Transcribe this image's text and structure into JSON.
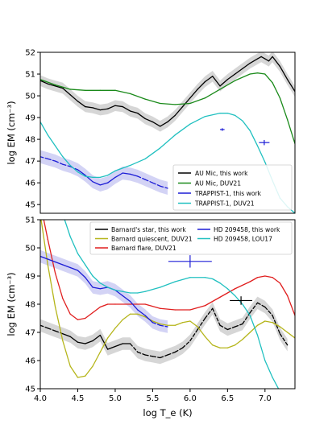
{
  "chart_data": [
    {
      "type": "line",
      "ylabel": "log EM (cm⁻³)",
      "xlim": [
        4.0,
        7.4
      ],
      "ylim": [
        44.6,
        52.0
      ],
      "yticks": [
        "45",
        "46",
        "47",
        "48",
        "49",
        "50",
        "51",
        "52"
      ],
      "legend_position": "lower-right",
      "series": [
        {
          "name": "AU Mic, this work",
          "color": "#000000",
          "style": "solid",
          "band_color": "#bbbbbb",
          "x": [
            4.0,
            4.1,
            4.2,
            4.3,
            4.4,
            4.5,
            4.6,
            4.7,
            4.8,
            4.9,
            5.0,
            5.1,
            5.2,
            5.3,
            5.4,
            5.5,
            5.6,
            5.7,
            5.8,
            5.9,
            6.0,
            6.1,
            6.2,
            6.3,
            6.4,
            6.5,
            6.6,
            6.7,
            6.8,
            6.9,
            6.95,
            7.0,
            7.05,
            7.1,
            7.2,
            7.3,
            7.4
          ],
          "y": [
            50.7,
            50.55,
            50.45,
            50.35,
            50.05,
            49.75,
            49.5,
            49.45,
            49.35,
            49.4,
            49.55,
            49.5,
            49.3,
            49.2,
            48.95,
            48.8,
            48.6,
            48.8,
            49.1,
            49.5,
            49.9,
            50.3,
            50.65,
            50.9,
            50.45,
            50.75,
            51.0,
            51.25,
            51.5,
            51.7,
            51.8,
            51.7,
            51.6,
            51.8,
            51.35,
            50.75,
            50.2
          ],
          "band_halfwidth": 0.25
        },
        {
          "name": "AU Mic, DUV21",
          "color": "#1a8a1a",
          "style": "solid",
          "x": [
            4.0,
            4.2,
            4.4,
            4.6,
            4.8,
            5.0,
            5.2,
            5.4,
            5.6,
            5.8,
            6.0,
            6.2,
            6.4,
            6.6,
            6.8,
            6.9,
            7.0,
            7.1,
            7.2,
            7.3,
            7.4
          ],
          "y": [
            50.75,
            50.5,
            50.3,
            50.25,
            50.25,
            50.25,
            50.1,
            49.85,
            49.65,
            49.6,
            49.65,
            49.9,
            50.3,
            50.7,
            51.0,
            51.05,
            51.0,
            50.6,
            49.9,
            48.9,
            47.8
          ]
        },
        {
          "name": "TRAPPIST-1, this work",
          "color": "#1c1cd6",
          "style": "solid",
          "band_color": "#b6b6ee",
          "x": [
            4.0,
            4.1,
            4.2,
            4.3,
            4.4,
            4.5,
            4.6,
            4.7,
            4.8,
            4.9,
            5.0,
            5.1,
            5.2,
            5.3,
            5.4,
            5.5,
            5.6,
            5.7
          ],
          "y": [
            47.2,
            47.1,
            47.0,
            46.85,
            46.75,
            46.6,
            46.35,
            46.05,
            45.9,
            46.0,
            46.25,
            46.45,
            46.4,
            46.3,
            46.15,
            46.0,
            45.85,
            45.75
          ],
          "dashed_x": [
            [
              4.0,
              4.5
            ],
            [
              5.35,
              5.7
            ]
          ],
          "band_halfwidth": 0.3
        },
        {
          "name": "TRAPPIST-1, DUV21",
          "color": "#20c0c0",
          "style": "solid",
          "x": [
            4.0,
            4.1,
            4.2,
            4.3,
            4.4,
            4.5,
            4.6,
            4.7,
            4.8,
            4.9,
            5.0,
            5.2,
            5.4,
            5.6,
            5.8,
            6.0,
            6.2,
            6.4,
            6.5,
            6.6,
            6.7,
            6.8,
            6.9,
            7.0,
            7.1,
            7.2,
            7.3,
            7.4
          ],
          "y": [
            48.8,
            48.2,
            47.7,
            47.2,
            46.8,
            46.5,
            46.3,
            46.25,
            46.25,
            46.35,
            46.55,
            46.8,
            47.1,
            47.6,
            48.2,
            48.7,
            49.05,
            49.2,
            49.2,
            49.1,
            48.85,
            48.4,
            47.7,
            46.95,
            46.1,
            45.3,
            44.9,
            44.6
          ]
        }
      ],
      "errorbars": [
        {
          "x": 6.43,
          "y": 48.45,
          "xerr": 0.03,
          "yerr": 0.06,
          "color": "#1c1cd6"
        },
        {
          "x": 6.99,
          "y": 47.85,
          "xerr": 0.07,
          "yerr": 0.12,
          "color": "#1c1cd6"
        }
      ]
    },
    {
      "type": "line",
      "xlabel": "log T_e (K)",
      "ylabel": "log EM (cm⁻³)",
      "xlim": [
        4.0,
        7.4
      ],
      "ylim": [
        45.0,
        51.0
      ],
      "xticks": [
        "4.0",
        "4.5",
        "5.0",
        "5.5",
        "6.0",
        "6.5",
        "7.0"
      ],
      "yticks": [
        "45",
        "46",
        "47",
        "48",
        "49",
        "50",
        "51"
      ],
      "legend_position": "top",
      "series": [
        {
          "name": "Barnard's star, this work",
          "color": "#000000",
          "style": "solid",
          "band_color": "#bbbbbb",
          "x": [
            4.0,
            4.1,
            4.2,
            4.3,
            4.4,
            4.5,
            4.6,
            4.7,
            4.8,
            4.9,
            5.0,
            5.1,
            5.2,
            5.3,
            5.4,
            5.5,
            5.6,
            5.7,
            5.8,
            5.9,
            6.0,
            6.1,
            6.2,
            6.3,
            6.4,
            6.5,
            6.6,
            6.7,
            6.8,
            6.9,
            7.0,
            7.1,
            7.2,
            7.3
          ],
          "y": [
            47.25,
            47.15,
            47.05,
            46.95,
            46.85,
            46.65,
            46.6,
            46.7,
            46.9,
            46.4,
            46.5,
            46.6,
            46.6,
            46.3,
            46.2,
            46.15,
            46.1,
            46.2,
            46.3,
            46.45,
            46.7,
            47.1,
            47.5,
            47.85,
            47.25,
            47.1,
            47.2,
            47.3,
            47.7,
            48.05,
            47.9,
            47.6,
            46.95,
            46.55
          ],
          "dashed_x": [
            [
              4.0,
              4.3
            ],
            [
              5.25,
              7.4
            ]
          ],
          "band_halfwidth": 0.22
        },
        {
          "name": "Barnard quiescent, DUV21",
          "color": "#b5b51a",
          "style": "solid",
          "x": [
            4.0,
            4.1,
            4.2,
            4.3,
            4.4,
            4.5,
            4.6,
            4.7,
            4.8,
            4.9,
            5.0,
            5.1,
            5.2,
            5.3,
            5.4,
            5.5,
            5.6,
            5.7,
            5.8,
            5.9,
            6.0,
            6.1,
            6.2,
            6.3,
            6.4,
            6.5,
            6.6,
            6.7,
            6.8,
            6.9,
            7.0,
            7.1,
            7.2,
            7.3,
            7.4
          ],
          "y": [
            51.2,
            49.4,
            47.9,
            46.7,
            45.8,
            45.4,
            45.45,
            45.8,
            46.3,
            46.8,
            47.15,
            47.45,
            47.65,
            47.65,
            47.55,
            47.4,
            47.3,
            47.25,
            47.25,
            47.35,
            47.4,
            47.2,
            46.85,
            46.55,
            46.45,
            46.45,
            46.55,
            46.75,
            47.0,
            47.25,
            47.4,
            47.35,
            47.2,
            47.0,
            46.8
          ]
        },
        {
          "name": "Barnard flare, DUV21",
          "color": "#e01e1e",
          "style": "solid",
          "x": [
            4.0,
            4.1,
            4.2,
            4.3,
            4.4,
            4.5,
            4.6,
            4.7,
            4.8,
            4.9,
            5.0,
            5.2,
            5.4,
            5.6,
            5.8,
            6.0,
            6.2,
            6.4,
            6.6,
            6.8,
            6.9,
            7.0,
            7.1,
            7.2,
            7.3,
            7.4
          ],
          "y": [
            51.6,
            50.3,
            49.1,
            48.2,
            47.65,
            47.45,
            47.5,
            47.7,
            47.9,
            48.0,
            48.0,
            48.0,
            48.0,
            47.85,
            47.8,
            47.8,
            47.95,
            48.25,
            48.55,
            48.8,
            48.95,
            49.0,
            48.95,
            48.75,
            48.3,
            47.6
          ]
        },
        {
          "name": "HD 209458, this work",
          "color": "#1c1cd6",
          "style": "solid",
          "band_color": "#b6b6ee",
          "x": [
            4.0,
            4.1,
            4.2,
            4.3,
            4.4,
            4.5,
            4.6,
            4.7,
            4.8,
            4.9,
            5.0,
            5.1,
            5.2,
            5.3,
            5.4,
            5.5,
            5.6,
            5.7
          ],
          "y": [
            49.7,
            49.6,
            49.5,
            49.4,
            49.3,
            49.2,
            48.95,
            48.6,
            48.55,
            48.6,
            48.5,
            48.3,
            48.1,
            47.8,
            47.6,
            47.35,
            47.25,
            47.2
          ],
          "dashed_x": [
            [
              5.5,
              5.7
            ]
          ],
          "band_halfwidth": 0.22
        },
        {
          "name": "HD 209458, LOU17",
          "color": "#20c0c0",
          "style": "solid",
          "x": [
            4.3,
            4.4,
            4.5,
            4.6,
            4.7,
            4.8,
            4.9,
            5.0,
            5.1,
            5.2,
            5.3,
            5.4,
            5.6,
            5.8,
            6.0,
            6.2,
            6.3,
            6.4,
            6.5,
            6.6,
            6.7,
            6.8,
            6.9,
            6.95,
            7.0,
            7.1,
            7.2,
            7.3
          ],
          "y": [
            51.2,
            50.4,
            49.8,
            49.4,
            49.0,
            48.75,
            48.6,
            48.5,
            48.45,
            48.4,
            48.4,
            48.45,
            48.6,
            48.8,
            48.95,
            48.95,
            48.9,
            48.75,
            48.55,
            48.3,
            48.0,
            47.6,
            46.9,
            46.45,
            46.0,
            45.4,
            44.9,
            44.4
          ]
        }
      ],
      "errorbars": [
        {
          "x": 6.0,
          "y": 49.52,
          "xerr": 0.29,
          "yerr": 0.22,
          "color": "#1c1cd6"
        },
        {
          "x": 6.68,
          "y": 48.13,
          "xerr": 0.15,
          "yerr": 0.15,
          "color": "#000000"
        }
      ]
    }
  ]
}
